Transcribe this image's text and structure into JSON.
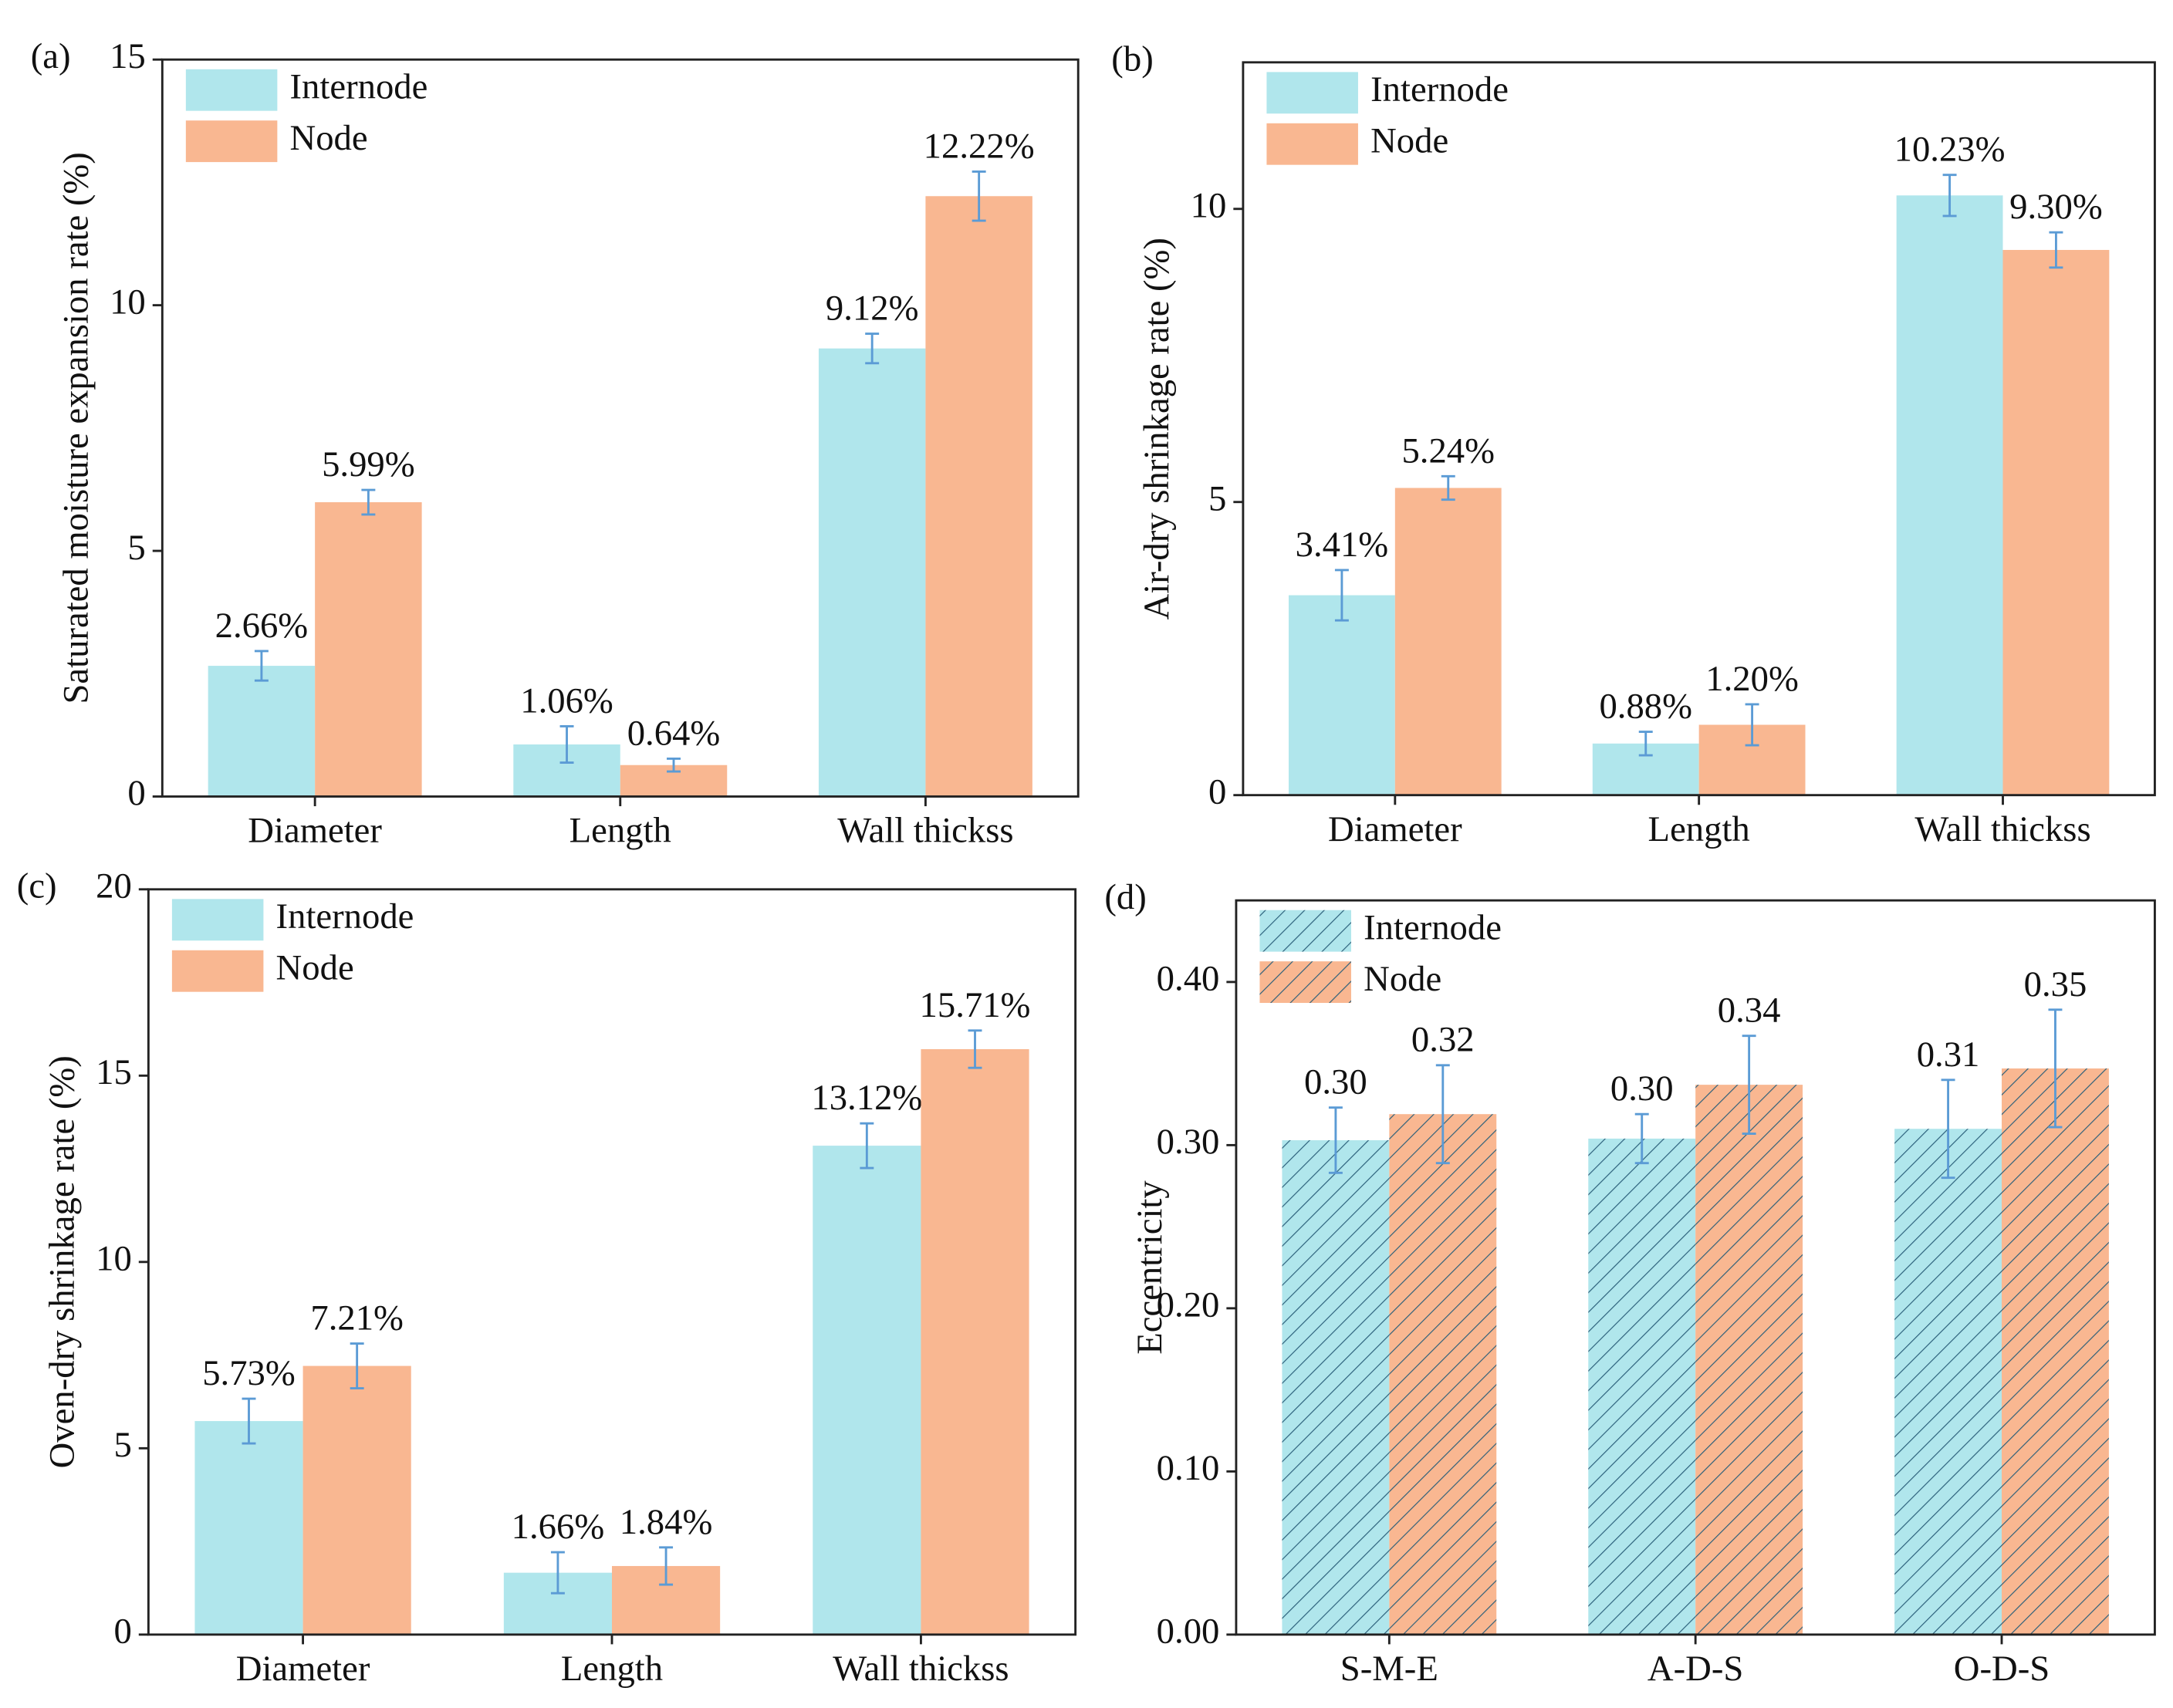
{
  "chart_data": [
    {
      "type": "bar",
      "panel": "(a)",
      "ylabel": "Saturated moisture expansion rate (%)",
      "categories": [
        "Diameter",
        "Length",
        "Wall thickss"
      ],
      "series": [
        {
          "name": "Internode",
          "color": "#b0e6ec",
          "values": [
            2.66,
            1.06,
            9.12
          ],
          "value_labels": [
            "2.66%",
            "1.06%",
            "9.12%"
          ],
          "errors": [
            0.3,
            0.37,
            0.3
          ]
        },
        {
          "name": "Node",
          "color": "#f9b791",
          "values": [
            5.99,
            0.64,
            12.22
          ],
          "value_labels": [
            "5.99%",
            "0.64%",
            "12.22%"
          ],
          "errors": [
            0.25,
            0.13,
            0.5
          ]
        }
      ],
      "ylim": [
        0,
        15
      ],
      "yticks": [
        0,
        5,
        10,
        15
      ],
      "legend": "top-left",
      "hatch": false
    },
    {
      "type": "bar",
      "panel": "(b)",
      "ylabel": "Air-dry shrinkage rate (%)",
      "categories": [
        "Diameter",
        "Length",
        "Wall thickss"
      ],
      "series": [
        {
          "name": "Internode",
          "color": "#b0e6ec",
          "values": [
            3.41,
            0.88,
            10.23
          ],
          "value_labels": [
            "3.41%",
            "0.88%",
            "10.23%"
          ],
          "errors": [
            0.43,
            0.2,
            0.35
          ]
        },
        {
          "name": "Node",
          "color": "#f9b791",
          "values": [
            5.24,
            1.2,
            9.3
          ],
          "value_labels": [
            "5.24%",
            "1.20%",
            "9.30%"
          ],
          "errors": [
            0.2,
            0.35,
            0.3
          ]
        }
      ],
      "ylim": [
        0,
        12.5
      ],
      "yticks": [
        0,
        5,
        10
      ],
      "legend": "top-left",
      "hatch": false
    },
    {
      "type": "bar",
      "panel": "(c)",
      "ylabel": "Oven-dry shrinkage rate (%)",
      "categories": [
        "Diameter",
        "Length",
        "Wall thickss"
      ],
      "series": [
        {
          "name": "Internode",
          "color": "#b0e6ec",
          "values": [
            5.73,
            1.66,
            13.12
          ],
          "value_labels": [
            "5.73%",
            "1.66%",
            "13.12%"
          ],
          "errors": [
            0.6,
            0.55,
            0.6
          ]
        },
        {
          "name": "Node",
          "color": "#f9b791",
          "values": [
            7.21,
            1.84,
            15.71
          ],
          "value_labels": [
            "7.21%",
            "1.84%",
            "15.71%"
          ],
          "errors": [
            0.6,
            0.5,
            0.5
          ]
        }
      ],
      "ylim": [
        0,
        20
      ],
      "yticks": [
        0,
        5,
        10,
        15,
        20
      ],
      "legend": "top-left",
      "hatch": false
    },
    {
      "type": "bar",
      "panel": "(d)",
      "ylabel": "Eccentricity",
      "categories": [
        "S-M-E",
        "A-D-S",
        "O-D-S"
      ],
      "series": [
        {
          "name": "Internode",
          "color": "#b0e6ec",
          "values": [
            0.303,
            0.304,
            0.31
          ],
          "value_labels": [
            "0.30",
            "0.30",
            "0.31"
          ],
          "errors": [
            0.02,
            0.015,
            0.03
          ]
        },
        {
          "name": "Node",
          "color": "#f9b791",
          "values": [
            0.319,
            0.337,
            0.347
          ],
          "value_labels": [
            "0.32",
            "0.34",
            "0.35"
          ],
          "errors": [
            0.03,
            0.03,
            0.036
          ]
        }
      ],
      "ylim": [
        0,
        0.45
      ],
      "yticks": [
        {
          "value": 0,
          "label": "0.00"
        },
        {
          "value": 0.1,
          "label": "0.10"
        },
        {
          "value": 0.2,
          "label": "0.20"
        },
        {
          "value": 0.3,
          "label": "0.30"
        },
        {
          "value": 0.4,
          "label": "0.40"
        }
      ],
      "legend": "top-left",
      "hatch": true
    }
  ]
}
